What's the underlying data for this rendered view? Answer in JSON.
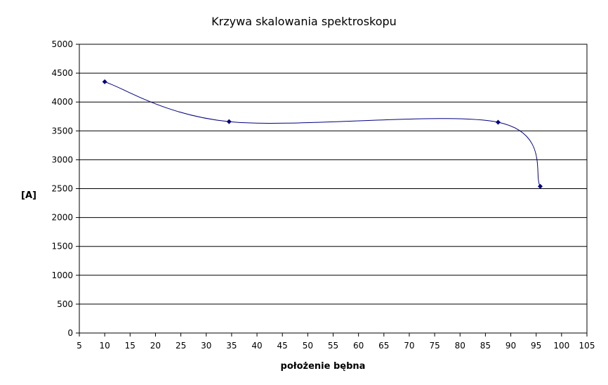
{
  "chart_data": {
    "type": "scatter",
    "title": "Krzywa skalowania spektroskopu",
    "xlabel": "położenie bębna",
    "ylabel": "[A]",
    "xlim": [
      5,
      105
    ],
    "ylim": [
      0,
      5000
    ],
    "x_ticks": [
      "5",
      "10",
      "15",
      "20",
      "25",
      "30",
      "35",
      "40",
      "45",
      "50",
      "55",
      "60",
      "65",
      "70",
      "75",
      "80",
      "85",
      "90",
      "95",
      "100",
      "105"
    ],
    "y_ticks": [
      "0",
      "500",
      "1000",
      "1500",
      "2000",
      "2500",
      "3000",
      "3500",
      "4000",
      "4500",
      "5000"
    ],
    "grid": "horizontal",
    "legend": "none",
    "line_color": "#000080",
    "marker_color": "#000080",
    "series": [
      {
        "points": [
          {
            "x": 10,
            "y": 4350
          },
          {
            "x": 34.5,
            "y": 3660
          },
          {
            "x": 87.5,
            "y": 3650
          },
          {
            "x": 95.8,
            "y": 2540
          }
        ]
      }
    ]
  }
}
